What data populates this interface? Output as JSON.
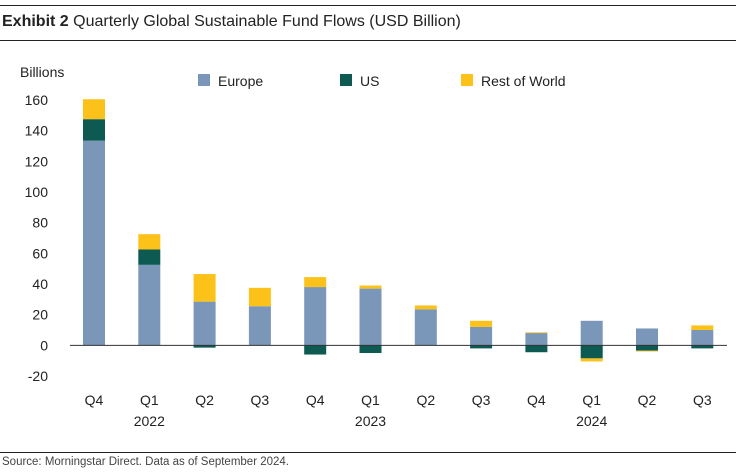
{
  "header": {
    "exhibit": "Exhibit 2",
    "title": "Quarterly Global Sustainable Fund Flows (USD Billion)"
  },
  "footer": {
    "source": "Source: Morningstar Direct. Data as of September 2024."
  },
  "chart_data": {
    "type": "bar",
    "stacked": true,
    "ylabel": "Billions",
    "ylim": [
      -20,
      160
    ],
    "yticks": [
      -20,
      0,
      20,
      40,
      60,
      80,
      100,
      120,
      140,
      160
    ],
    "grid": false,
    "legend_position": "top",
    "categories": [
      "Q4",
      "Q1",
      "Q2",
      "Q3",
      "Q4",
      "Q1",
      "Q2",
      "Q3",
      "Q4",
      "Q1",
      "Q2",
      "Q3"
    ],
    "year_labels": [
      {
        "label": "2022",
        "category_index": 1
      },
      {
        "label": "2023",
        "category_index": 5
      },
      {
        "label": "2024",
        "category_index": 9
      }
    ],
    "series": [
      {
        "name": "Europe",
        "color": "#7a96b8",
        "values": [
          133.5,
          52.5,
          28.5,
          25.5,
          38,
          37,
          23.5,
          12,
          8,
          16,
          11,
          10
        ]
      },
      {
        "name": "US",
        "color": "#0c5a52",
        "values": [
          14,
          10,
          -1.5,
          0,
          -6,
          -5,
          0,
          -2,
          -4.5,
          -8.5,
          -3.5,
          -2
        ]
      },
      {
        "name": "Rest of World",
        "color": "#fcc21a",
        "values": [
          13,
          10,
          18,
          12,
          6.5,
          2,
          2.5,
          4,
          0.5,
          -2,
          -0.5,
          3
        ]
      }
    ]
  }
}
